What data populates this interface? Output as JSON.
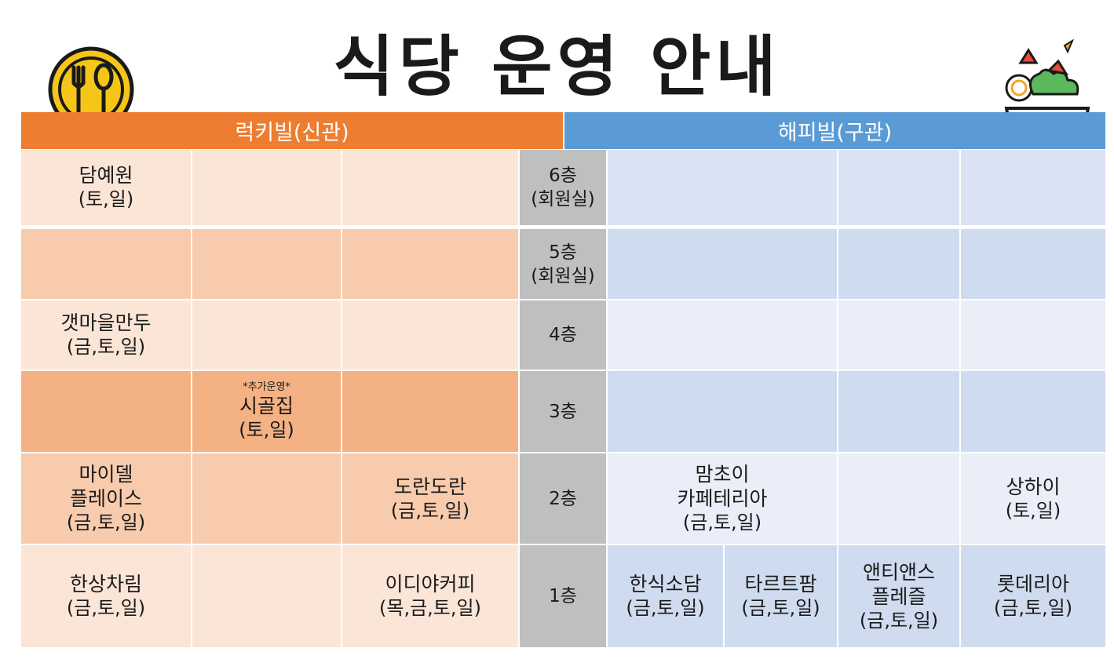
{
  "title": "식당 운영 안내",
  "buildings": {
    "left": "럭키빌(신관)",
    "right": "해피빌(구관)"
  },
  "floors": {
    "f6": {
      "label": "6층",
      "sub": "(회원실)"
    },
    "f5": {
      "label": "5층",
      "sub": "(회원실)"
    },
    "f4": {
      "label": "4층"
    },
    "f3": {
      "label": "3층"
    },
    "f2": {
      "label": "2층"
    },
    "f1": {
      "label": "1층"
    }
  },
  "left": {
    "damyewon": {
      "name": "담예원",
      "days": "(토,일)"
    },
    "gaetmaeul": {
      "name": "갯마을만두",
      "days": "(금,토,일)"
    },
    "sigoljip": {
      "note": "*추가운영*",
      "name": "시골집",
      "days": "(토,일)"
    },
    "mydel": {
      "name1": "마이델",
      "name2": "플레이스",
      "days": "(금,토,일)"
    },
    "doran": {
      "name": "도란도란",
      "days": "(금,토,일)"
    },
    "hansang": {
      "name": "한상차림",
      "days": "(금,토,일)"
    },
    "ediya": {
      "name": "이디야커피",
      "days": "(목,금,토,일)"
    }
  },
  "right": {
    "mamchoi": {
      "name1": "맘초이",
      "name2": "카페테리아",
      "days": "(금,토,일)"
    },
    "shanghai": {
      "name": "상하이",
      "days": "(토,일)"
    },
    "hansik": {
      "name": "한식소담",
      "days": "(금,토,일)"
    },
    "tart": {
      "name": "타르트팜",
      "days": "(금,토,일)"
    },
    "antiance": {
      "name1": "앤티앤스",
      "name2": "플레즐",
      "days": "(금,토,일)"
    },
    "lotteria": {
      "name": "롯데리아",
      "days": "(금,토,일)"
    }
  },
  "colors": {
    "left_header": "#ed7d31",
    "right_header": "#5b9bd5",
    "floor_column": "#bfbfbf"
  },
  "icons": {
    "left_logo": "fork-spoon-icon",
    "right_logo": "salad-bowl-icon"
  }
}
